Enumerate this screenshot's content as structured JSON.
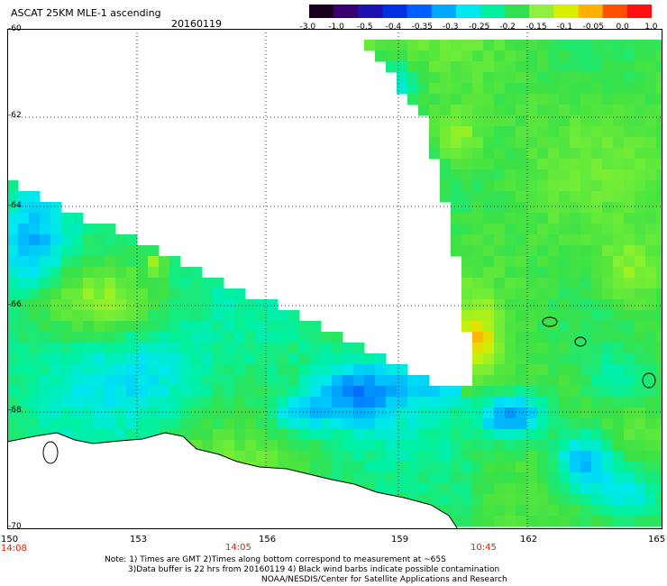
{
  "header": {
    "title": "ASCAT 25KM MLE-1 ascending",
    "date": "20160119"
  },
  "colorbar": {
    "ticks": [
      "-3.0",
      "-1.0",
      "-0.5",
      "-0.4",
      "-0.35",
      "-0.3",
      "-0.25",
      "-0.2",
      "-0.15",
      "-0.1",
      "-0.05",
      "0.0",
      "1.0"
    ],
    "colors": [
      "#1a0020",
      "#3b0070",
      "#2010b0",
      "#0030e0",
      "#0060ff",
      "#00a8ff",
      "#00e8f0",
      "#00f0a0",
      "#30e050",
      "#90f040",
      "#d8f000",
      "#ffb000",
      "#ff5000",
      "#ff1010"
    ]
  },
  "axes": {
    "lat_labels": [
      "-60",
      "-62",
      "-64",
      "-66",
      "-68",
      "-70"
    ],
    "lon_labels": [
      "150",
      "153",
      "156",
      "159",
      "162",
      "165"
    ],
    "lat_range": [
      -70,
      -60
    ],
    "lon_range": [
      150,
      165
    ],
    "grid": "dotted"
  },
  "times": [
    "14:08",
    "14:05",
    "10:45"
  ],
  "notes": [
    "Note: 1) Times are GMT 2)Times along bottom correspond to measurement at ~65S",
    "3)Data buffer is 22 hrs from 20160119 4) Black wind barbs indicate possible contamination",
    "NOAA/NESDIS/Center for Satellite Applications and Research"
  ],
  "map": {
    "variable": "ASCAT MLE-1",
    "swaths": [
      {
        "name": "western swath",
        "dominant": "green/cyan",
        "min_region": "blue near -68 lat, 157-158 lon"
      },
      {
        "name": "eastern swath",
        "dominant": "green",
        "max_region": "orange/yellow near -66 lat, 160 lon"
      }
    ],
    "colors": {
      "coast": "#000000",
      "grid": "#000000",
      "background": "#ffffff"
    }
  }
}
